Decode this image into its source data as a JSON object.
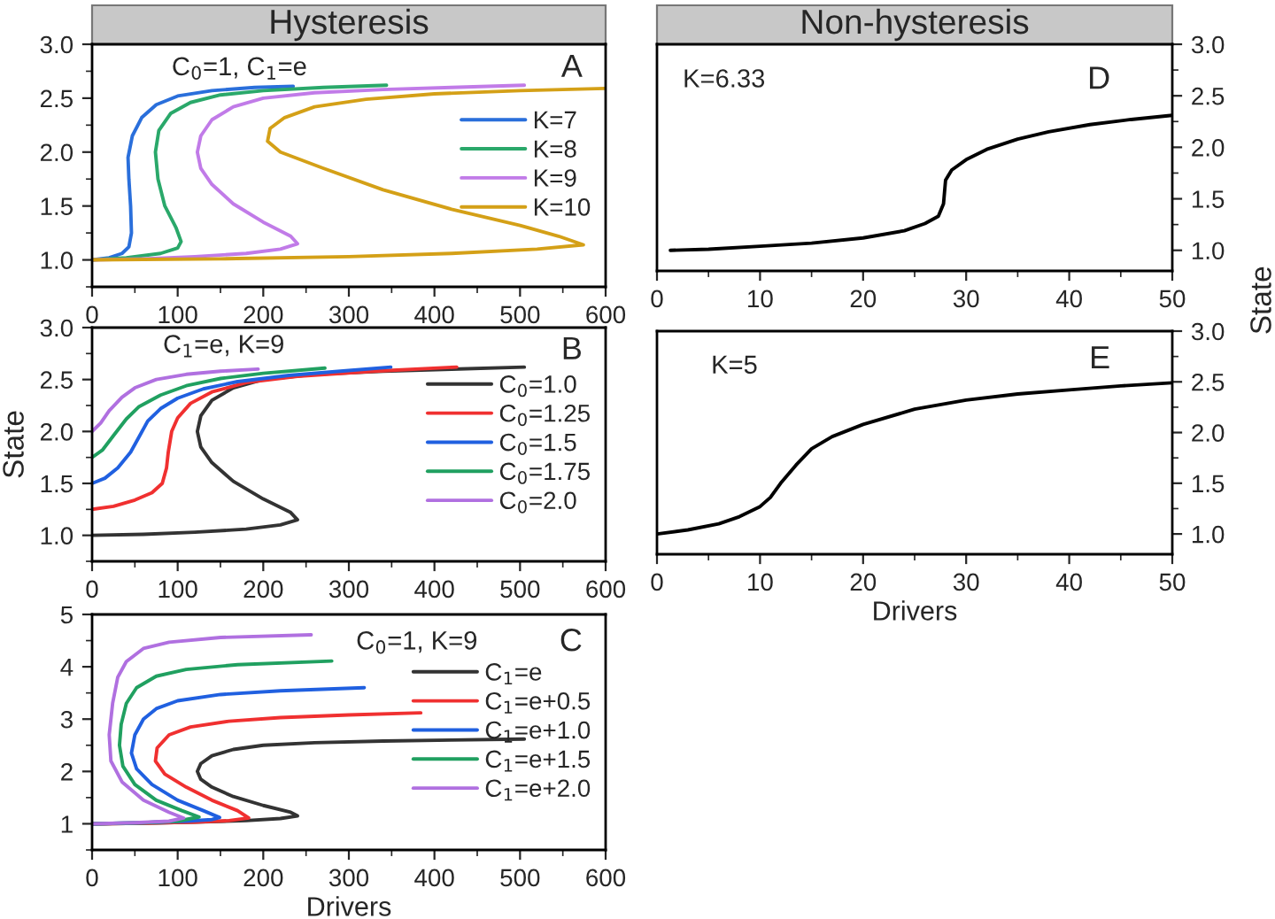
{
  "chart_data": [
    {
      "type": "line",
      "title": "Hysteresis",
      "xlim": [
        0,
        600
      ],
      "xticks": [
        0,
        100,
        200,
        300,
        400,
        500,
        600
      ],
      "ylim": [
        0.75,
        3.0
      ],
      "yticks": [
        {
          "value": 1,
          "label": "1.0"
        },
        1.5,
        {
          "value": 2,
          "label": "2.0"
        },
        2.5,
        {
          "value": 3,
          "label": "3.0"
        }
      ],
      "legend": "center right",
      "annotations": [
        "C$_{0}$=1, C$_{1}$=e",
        "A"
      ],
      "series": [
        {
          "name": "K=7",
          "color": "#2a6fdb",
          "x": [
            0,
            20,
            35,
            43,
            46,
            45,
            43,
            42,
            47,
            58,
            75,
            100,
            140,
            190,
            235
          ],
          "values": [
            1.0,
            1.02,
            1.06,
            1.12,
            1.25,
            1.5,
            1.75,
            1.95,
            2.15,
            2.32,
            2.44,
            2.52,
            2.57,
            2.6,
            2.61
          ]
        },
        {
          "name": "K=8",
          "color": "#2aa86a",
          "x": [
            0,
            40,
            80,
            100,
            104,
            98,
            85,
            77,
            74,
            78,
            92,
            115,
            150,
            200,
            270,
            344
          ],
          "values": [
            1.0,
            1.02,
            1.06,
            1.11,
            1.17,
            1.3,
            1.5,
            1.75,
            2.0,
            2.2,
            2.36,
            2.46,
            2.53,
            2.57,
            2.6,
            2.62
          ]
        },
        {
          "name": "K=9",
          "color": "#c17be8",
          "x": [
            0,
            60,
            120,
            180,
            220,
            240,
            232,
            200,
            165,
            140,
            127,
            123,
            127,
            140,
            165,
            200,
            260,
            340,
            420,
            505
          ],
          "values": [
            1.0,
            1.01,
            1.03,
            1.06,
            1.1,
            1.15,
            1.22,
            1.35,
            1.52,
            1.7,
            1.85,
            2.0,
            2.15,
            2.3,
            2.42,
            2.5,
            2.55,
            2.58,
            2.6,
            2.62
          ]
        },
        {
          "name": "K=10",
          "color": "#d4a017",
          "x": [
            0,
            150,
            300,
            420,
            520,
            574,
            545,
            500,
            420,
            340,
            270,
            220,
            205,
            208,
            225,
            260,
            320,
            400,
            500,
            600
          ],
          "values": [
            1.0,
            1.01,
            1.03,
            1.06,
            1.1,
            1.14,
            1.22,
            1.32,
            1.47,
            1.65,
            1.85,
            2.0,
            2.1,
            2.22,
            2.32,
            2.42,
            2.49,
            2.54,
            2.57,
            2.59
          ]
        }
      ]
    },
    {
      "type": "line",
      "ylabel": "State",
      "xlim": [
        0,
        600
      ],
      "xticks": [
        0,
        100,
        200,
        300,
        400,
        500,
        600
      ],
      "ylim": [
        0.75,
        3.0
      ],
      "yticks": [
        {
          "value": 1,
          "label": "1.0"
        },
        1.5,
        {
          "value": 2,
          "label": "2.0"
        },
        2.5,
        {
          "value": 3,
          "label": "3.0"
        }
      ],
      "legend": "center right",
      "annotations": [
        "C$_{1}$=e, K=9",
        "B"
      ],
      "series": [
        {
          "name": "C$_{0}$=1.0",
          "color": "#333333",
          "x": [
            0,
            60,
            120,
            180,
            220,
            240,
            232,
            200,
            165,
            140,
            127,
            123,
            127,
            140,
            165,
            200,
            260,
            340,
            420,
            505
          ],
          "values": [
            1.0,
            1.01,
            1.03,
            1.06,
            1.1,
            1.15,
            1.22,
            1.35,
            1.52,
            1.7,
            1.85,
            2.0,
            2.15,
            2.3,
            2.42,
            2.5,
            2.55,
            2.58,
            2.6,
            2.62
          ]
        },
        {
          "name": "C$_{0}$=1.25",
          "color": "#f03030",
          "x": [
            0,
            25,
            50,
            70,
            82,
            87,
            89,
            93,
            100,
            115,
            140,
            180,
            240,
            330,
            426
          ],
          "values": [
            1.25,
            1.28,
            1.34,
            1.41,
            1.5,
            1.65,
            1.8,
            2.0,
            2.13,
            2.27,
            2.38,
            2.47,
            2.53,
            2.58,
            2.62
          ]
        },
        {
          "name": "C$_{0}$=1.5",
          "color": "#2060e0",
          "x": [
            0,
            15,
            30,
            45,
            55,
            65,
            80,
            100,
            130,
            170,
            230,
            290,
            349
          ],
          "values": [
            1.5,
            1.55,
            1.65,
            1.8,
            1.95,
            2.1,
            2.22,
            2.32,
            2.41,
            2.48,
            2.54,
            2.58,
            2.62
          ]
        },
        {
          "name": "C$_{0}$=1.75",
          "color": "#20a060",
          "x": [
            0,
            12,
            25,
            40,
            55,
            80,
            110,
            150,
            200,
            272
          ],
          "values": [
            1.75,
            1.82,
            1.96,
            2.12,
            2.24,
            2.35,
            2.44,
            2.51,
            2.56,
            2.61
          ]
        },
        {
          "name": "C$_{0}$=2.0",
          "color": "#b070e0",
          "x": [
            0,
            10,
            20,
            35,
            50,
            75,
            110,
            150,
            194
          ],
          "values": [
            2.0,
            2.08,
            2.2,
            2.33,
            2.42,
            2.5,
            2.55,
            2.58,
            2.6
          ]
        }
      ]
    },
    {
      "type": "line",
      "xlabel": "Drivers",
      "xlim": [
        0,
        600
      ],
      "xticks": [
        0,
        100,
        200,
        300,
        400,
        500,
        600
      ],
      "ylim": [
        0.5,
        5
      ],
      "yticks": [
        1,
        2,
        3,
        4,
        5
      ],
      "legend": "center right",
      "annotations": [
        "C$_{0}$=1, K=9",
        "C"
      ],
      "series": [
        {
          "name": "C$_{1}$=e",
          "color": "#333333",
          "x": [
            0,
            60,
            120,
            180,
            220,
            240,
            232,
            200,
            165,
            140,
            127,
            123,
            127,
            140,
            165,
            200,
            260,
            340,
            420,
            505
          ],
          "values": [
            1.0,
            1.01,
            1.03,
            1.06,
            1.1,
            1.15,
            1.22,
            1.35,
            1.52,
            1.7,
            1.85,
            2.0,
            2.15,
            2.3,
            2.42,
            2.5,
            2.55,
            2.58,
            2.6,
            2.62
          ]
        },
        {
          "name": "C$_{1}$=e+0.5",
          "color": "#f03030",
          "x": [
            0,
            60,
            120,
            160,
            183,
            170,
            140,
            110,
            85,
            74,
            76,
            90,
            115,
            160,
            220,
            300,
            384
          ],
          "values": [
            1.0,
            1.01,
            1.03,
            1.06,
            1.11,
            1.25,
            1.45,
            1.7,
            1.95,
            2.2,
            2.45,
            2.7,
            2.85,
            2.96,
            3.03,
            3.08,
            3.12
          ]
        },
        {
          "name": "C$_{1}$=e+1.0",
          "color": "#2060e0",
          "x": [
            0,
            60,
            110,
            140,
            149,
            130,
            100,
            70,
            52,
            46,
            50,
            60,
            75,
            100,
            150,
            220,
            318
          ],
          "values": [
            1.0,
            1.02,
            1.05,
            1.08,
            1.12,
            1.25,
            1.45,
            1.75,
            2.05,
            2.35,
            2.7,
            3.0,
            3.2,
            3.35,
            3.47,
            3.54,
            3.6
          ]
        },
        {
          "name": "C$_{1}$=e+1.5",
          "color": "#20a060",
          "x": [
            0,
            60,
            100,
            125,
            105,
            75,
            50,
            36,
            32,
            34,
            40,
            52,
            75,
            110,
            170,
            280
          ],
          "values": [
            1.0,
            1.02,
            1.05,
            1.13,
            1.25,
            1.45,
            1.75,
            2.1,
            2.5,
            2.9,
            3.3,
            3.6,
            3.82,
            3.95,
            4.04,
            4.11
          ]
        },
        {
          "name": "C$_{1}$=e+2.0",
          "color": "#b070e0",
          "x": [
            0,
            50,
            90,
            107,
            90,
            60,
            35,
            22,
            20,
            24,
            30,
            40,
            60,
            90,
            150,
            256
          ],
          "values": [
            1.0,
            1.02,
            1.05,
            1.11,
            1.22,
            1.45,
            1.8,
            2.2,
            2.7,
            3.3,
            3.8,
            4.1,
            4.35,
            4.47,
            4.56,
            4.61
          ]
        }
      ]
    },
    {
      "type": "line",
      "title": "Non-hysteresis",
      "ylabel": "State",
      "xlim": [
        0,
        50
      ],
      "xticks": [
        0,
        10,
        20,
        30,
        40,
        50
      ],
      "ylim": [
        0.8,
        3.0
      ],
      "yticks": [
        {
          "value": 1,
          "label": "1.0"
        },
        1.5,
        {
          "value": 2,
          "label": "2.0"
        },
        2.5,
        {
          "value": 3,
          "label": "3.0"
        }
      ],
      "annotations": [
        "K=6.33",
        "D"
      ],
      "series": [
        {
          "color": "#000000",
          "x": [
            1.3,
            5,
            10,
            15,
            20,
            24,
            26,
            27.3,
            27.8,
            28,
            28.6,
            30,
            32,
            35,
            38,
            42,
            46,
            50
          ],
          "values": [
            1.0,
            1.01,
            1.04,
            1.07,
            1.12,
            1.19,
            1.26,
            1.33,
            1.45,
            1.68,
            1.78,
            1.88,
            1.98,
            2.08,
            2.15,
            2.22,
            2.27,
            2.31
          ]
        }
      ]
    },
    {
      "type": "line",
      "xlabel": "Drivers",
      "xlim": [
        0,
        50
      ],
      "xticks": [
        0,
        10,
        20,
        30,
        40,
        50
      ],
      "ylim": [
        0.8,
        3.0
      ],
      "yticks": [
        {
          "value": 1,
          "label": "1.0"
        },
        1.5,
        {
          "value": 2,
          "label": "2.0"
        },
        2.5,
        {
          "value": 3,
          "label": "3.0"
        }
      ],
      "annotations": [
        "K=5",
        "E"
      ],
      "series": [
        {
          "color": "#000000",
          "x": [
            0,
            3,
            6,
            8,
            10,
            11,
            12,
            13.5,
            15,
            17,
            20,
            25,
            30,
            35,
            40,
            45,
            50
          ],
          "values": [
            1.0,
            1.04,
            1.1,
            1.17,
            1.27,
            1.36,
            1.5,
            1.68,
            1.84,
            1.96,
            2.08,
            2.23,
            2.32,
            2.38,
            2.42,
            2.46,
            2.49
          ]
        }
      ]
    }
  ]
}
